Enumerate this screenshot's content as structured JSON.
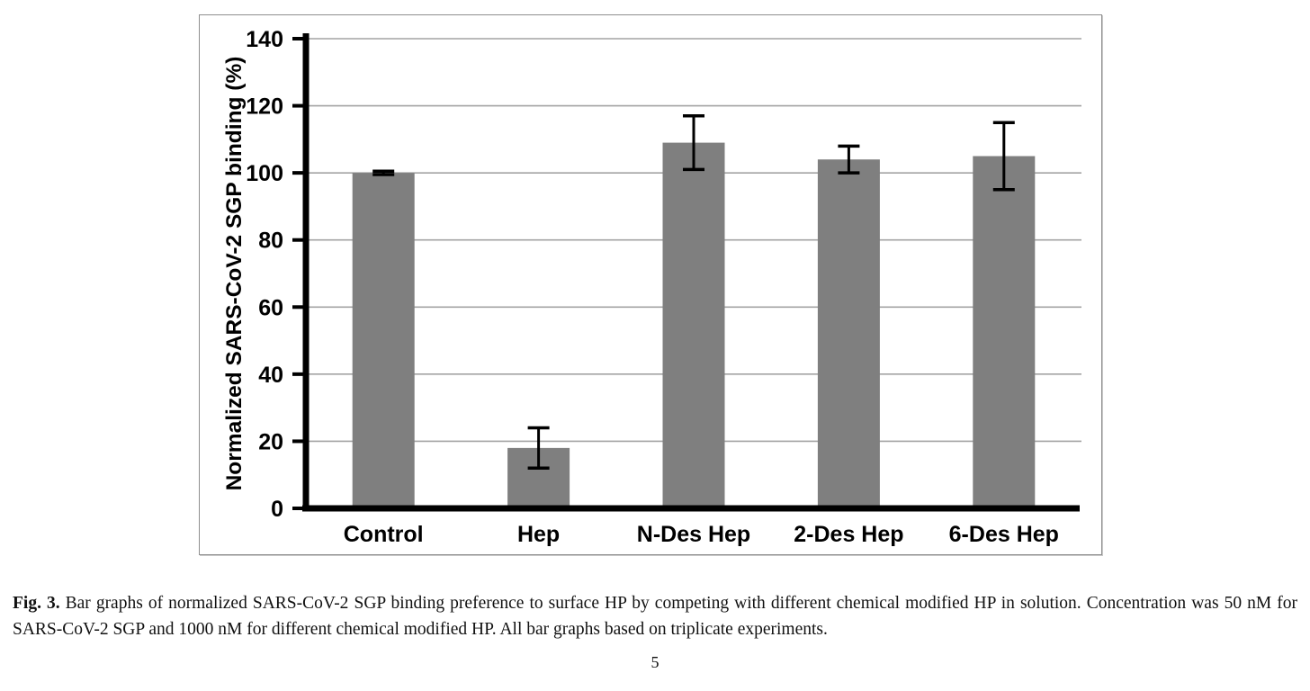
{
  "page_number": "5",
  "caption": {
    "label": "Fig. 3.",
    "text": "Bar graphs of normalized SARS-CoV-2 SGP binding preference to surface HP by competing with different chemical modified HP in solution. Concentration was 50 nM for SARS-CoV-2 SGP and 1000 nM for different chemical modified HP. All bar graphs based on triplicate experiments."
  },
  "chart_data": {
    "type": "bar",
    "title": "",
    "categories": [
      "Control",
      "Hep",
      "N-Des Hep",
      "2-Des Hep",
      "6-Des Hep"
    ],
    "values": [
      100,
      18,
      109,
      104,
      105
    ],
    "error_bars": [
      0.5,
      6,
      8,
      4,
      10
    ],
    "xlabel": "",
    "ylabel": "Normalized SARS-CoV-2 SGP binding  (%)",
    "ylim": [
      0,
      140
    ],
    "yticks": [
      0,
      20,
      40,
      60,
      80,
      100,
      120,
      140
    ],
    "grid": "horizontal gridlines at each y tick",
    "legend": "none",
    "bar_color": "#7f7f7f",
    "gridline_color": "#a3a3a3",
    "axis_color": "#000000",
    "error_bar_color": "#000000"
  }
}
